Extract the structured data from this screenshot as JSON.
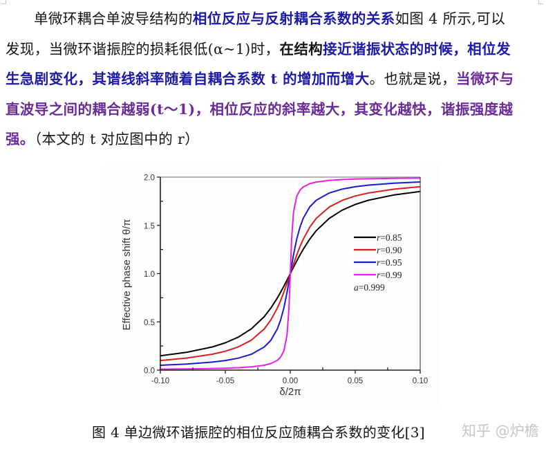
{
  "document": {
    "paragraph": {
      "lines": [
        [
          {
            "text": "单微环耦合单波导结构的",
            "style": "plain"
          },
          {
            "text": "相位反应与反射耦合系数的关系",
            "style": "em-blue"
          },
          {
            "text": "如图 4 所示,可以",
            "style": "plain"
          }
        ],
        [
          {
            "text": "发现，当微环谐振腔的损耗很低(α~1)时，",
            "style": "plain"
          },
          {
            "text": "在结构",
            "style": "plain-bold"
          },
          {
            "text": "接近谐振状态的时候，相位发",
            "style": "em-blue"
          }
        ],
        [
          {
            "text": "生急剧变化，其谱线斜率随着自耦合系数 t 的增加而增大",
            "style": "em-blue"
          },
          {
            "text": "。也就是说，",
            "style": "plain"
          },
          {
            "text": "当微环与",
            "style": "em-purple"
          }
        ],
        [
          {
            "text": "直波导之间的耦合越弱(t～1)，相位反应的斜率越大，其变化越快，谐振强度越",
            "style": "em-purple"
          }
        ],
        [
          {
            "text": "强。",
            "style": "em-purple"
          },
          {
            "text": "（本文的 t 对应图中的 r）",
            "style": "plain"
          }
        ]
      ]
    },
    "figure": {
      "caption": "图 4  单边微环谐振腔的相位反应随耦合系数的变化[3]"
    },
    "watermark": "知乎 @炉檐"
  },
  "chart_data": {
    "type": "line",
    "title": "",
    "xlabel": "δ/2π",
    "ylabel": "Effective phase shift θ/π",
    "xlim": [
      -0.1,
      0.1
    ],
    "ylim": [
      0.0,
      2.0
    ],
    "xticks": [
      "-0.10",
      "-0.05",
      "0.00",
      "0.05",
      "0.10"
    ],
    "yticks": [
      "0.0",
      "0.5",
      "1.0",
      "1.5",
      "2.0"
    ],
    "grid": false,
    "legend_position": "right-center inside plot",
    "annotation": "a=0.999",
    "x": [
      -0.1,
      -0.08,
      -0.06,
      -0.05,
      -0.04,
      -0.03,
      -0.02,
      -0.015,
      -0.01,
      -0.0075,
      -0.005,
      -0.0025,
      -0.001,
      0,
      0.001,
      0.0025,
      0.005,
      0.0075,
      0.01,
      0.015,
      0.02,
      0.03,
      0.04,
      0.05,
      0.06,
      0.08,
      0.1
    ],
    "series": [
      {
        "name": "r=0.85",
        "color": "#000000",
        "values": [
          0.149,
          0.184,
          0.24,
          0.283,
          0.342,
          0.427,
          0.555,
          0.642,
          0.747,
          0.806,
          0.868,
          0.933,
          0.973,
          1.0,
          1.027,
          1.067,
          1.132,
          1.194,
          1.253,
          1.358,
          1.445,
          1.573,
          1.658,
          1.717,
          1.76,
          1.816,
          1.851
        ]
      },
      {
        "name": "r=0.90",
        "color": "#d81e1e",
        "values": [
          0.1,
          0.125,
          0.165,
          0.196,
          0.241,
          0.31,
          0.427,
          0.519,
          0.643,
          0.719,
          0.806,
          0.901,
          0.96,
          1.0,
          1.04,
          1.099,
          1.194,
          1.281,
          1.357,
          1.481,
          1.573,
          1.69,
          1.759,
          1.804,
          1.835,
          1.875,
          1.9
        ]
      },
      {
        "name": "r=0.95",
        "color": "#1a1ad0",
        "values": [
          0.05,
          0.063,
          0.083,
          0.1,
          0.124,
          0.164,
          0.24,
          0.308,
          0.426,
          0.517,
          0.641,
          0.805,
          0.92,
          1.0,
          1.08,
          1.195,
          1.359,
          1.483,
          1.574,
          1.692,
          1.76,
          1.836,
          1.876,
          1.9,
          1.917,
          1.937,
          1.95
        ]
      },
      {
        "name": "r=0.99",
        "color": "#e81ee8",
        "values": [
          0.01,
          0.013,
          0.017,
          0.02,
          0.025,
          0.034,
          0.051,
          0.068,
          0.101,
          0.134,
          0.197,
          0.363,
          0.644,
          1.0,
          1.356,
          1.637,
          1.803,
          1.866,
          1.899,
          1.932,
          1.949,
          1.966,
          1.975,
          1.98,
          1.983,
          1.987,
          1.99
        ]
      }
    ]
  }
}
